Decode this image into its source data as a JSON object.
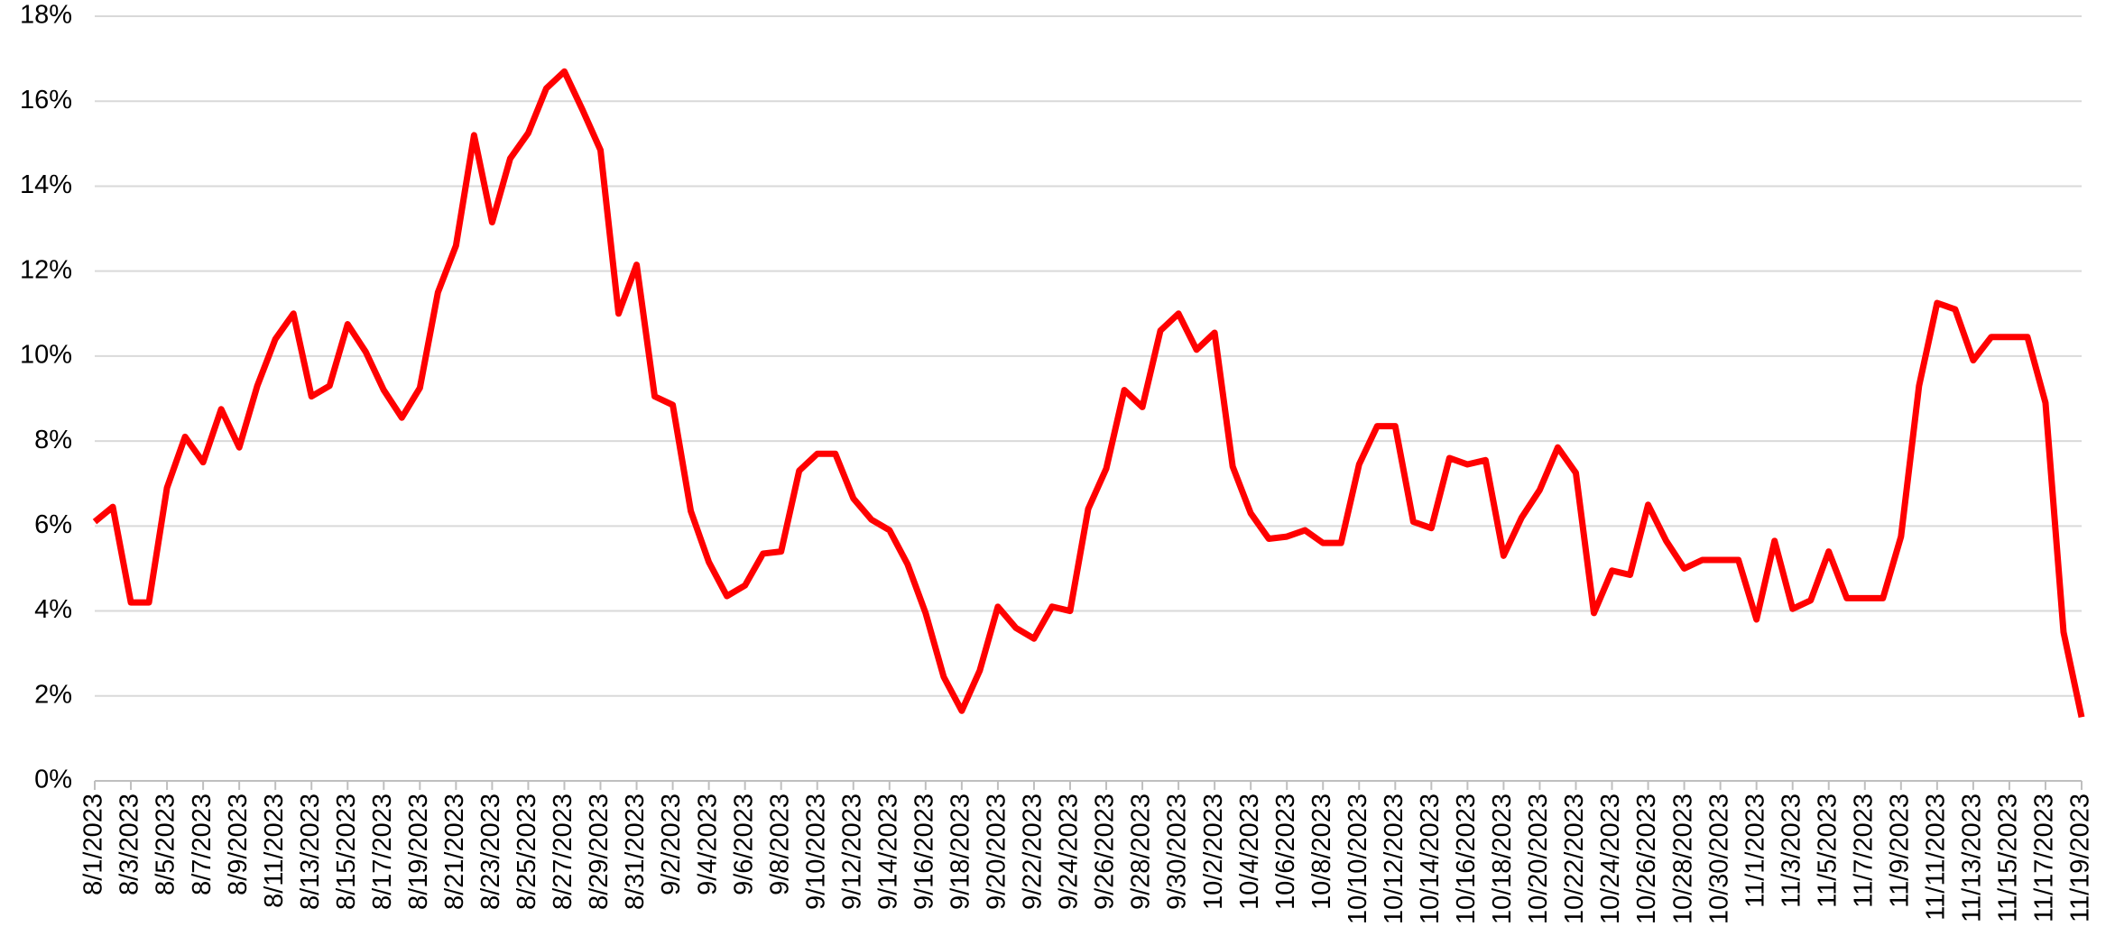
{
  "chart_data": {
    "type": "line",
    "categories": [
      "8/1/2023",
      null,
      "8/3/2023",
      null,
      "8/5/2023",
      null,
      "8/7/2023",
      null,
      "8/9/2023",
      null,
      "8/11/2023",
      null,
      "8/13/2023",
      null,
      "8/15/2023",
      null,
      "8/17/2023",
      null,
      "8/19/2023",
      null,
      "8/21/2023",
      null,
      "8/23/2023",
      null,
      "8/25/2023",
      null,
      "8/27/2023",
      null,
      "8/29/2023",
      null,
      "8/31/2023",
      null,
      "9/2/2023",
      null,
      "9/4/2023",
      null,
      "9/6/2023",
      null,
      "9/8/2023",
      null,
      "9/10/2023",
      null,
      "9/12/2023",
      null,
      "9/14/2023",
      null,
      "9/16/2023",
      null,
      "9/18/2023",
      null,
      "9/20/2023",
      null,
      "9/22/2023",
      null,
      "9/24/2023",
      null,
      "9/26/2023",
      null,
      "9/28/2023",
      null,
      "9/30/2023",
      null,
      "10/2/2023",
      null,
      "10/4/2023",
      null,
      "10/6/2023",
      null,
      "10/8/2023",
      null,
      "10/10/2023",
      null,
      "10/12/2023",
      null,
      "10/14/2023",
      null,
      "10/16/2023",
      null,
      "10/18/2023",
      null,
      "10/20/2023",
      null,
      "10/22/2023",
      null,
      "10/24/2023",
      null,
      "10/26/2023",
      null,
      "10/28/2023",
      null,
      "10/30/2023",
      null,
      "11/1/2023",
      null,
      "11/3/2023",
      null,
      "11/5/2023",
      null,
      "11/7/2023",
      null,
      "11/9/2023",
      null,
      "11/11/2023",
      null,
      "11/13/2023",
      null,
      "11/15/2023",
      null,
      "11/17/2023",
      null,
      "11/19/2023"
    ],
    "series": [
      {
        "color": "#ff0000",
        "values": [
          6.1,
          6.45,
          4.2,
          4.2,
          6.9,
          8.1,
          7.5,
          8.75,
          7.85,
          9.3,
          10.4,
          11.0,
          9.05,
          9.3,
          10.75,
          10.1,
          9.2,
          8.55,
          9.25,
          11.5,
          12.6,
          15.2,
          13.15,
          14.65,
          15.25,
          16.3,
          16.7,
          15.8,
          14.85,
          11.0,
          12.15,
          9.05,
          8.85,
          6.35,
          5.15,
          4.35,
          4.6,
          5.35,
          5.4,
          7.3,
          7.7,
          7.7,
          6.65,
          6.15,
          5.9,
          5.1,
          3.95,
          2.45,
          1.65,
          2.6,
          4.1,
          3.6,
          3.35,
          4.1,
          4.0,
          6.4,
          7.35,
          9.2,
          8.8,
          10.6,
          11.0,
          10.15,
          10.55,
          7.4,
          6.3,
          5.7,
          5.75,
          5.9,
          5.6,
          5.6,
          7.45,
          8.35,
          8.35,
          6.1,
          5.95,
          7.6,
          7.45,
          7.55,
          5.3,
          6.2,
          6.85,
          7.85,
          7.25,
          3.95,
          4.95,
          4.85,
          6.5,
          5.65,
          5.0,
          5.2,
          5.2,
          5.2,
          3.8,
          5.65,
          4.05,
          4.25,
          5.4,
          4.3,
          4.3,
          4.3,
          5.75,
          9.3,
          11.25,
          11.1,
          9.9,
          10.45,
          10.45,
          10.45,
          8.9,
          3.5,
          1.5
        ]
      }
    ],
    "ylim": [
      0,
      18
    ],
    "yticks": [
      {
        "value": 0,
        "label": "0%"
      },
      {
        "value": 2,
        "label": "2%"
      },
      {
        "value": 4,
        "label": "4%"
      },
      {
        "value": 6,
        "label": "6%"
      },
      {
        "value": 8,
        "label": "8%"
      },
      {
        "value": 10,
        "label": "10%"
      },
      {
        "value": 12,
        "label": "12%"
      },
      {
        "value": 14,
        "label": "14%"
      },
      {
        "value": 16,
        "label": "16%"
      },
      {
        "value": 18,
        "label": "18%"
      }
    ],
    "grid": true
  }
}
